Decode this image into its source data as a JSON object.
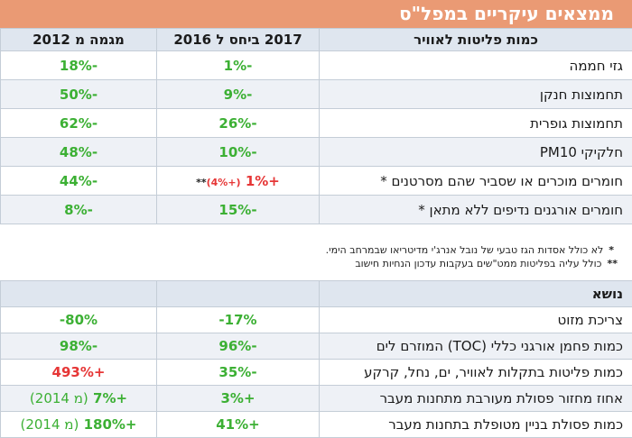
{
  "title": "ממצאים עיקריים במפל\"ס",
  "table1": {
    "headers": {
      "category": "כמות פליטות לאוויר",
      "vs2016": "2017 ביחס ל 2016",
      "trend2012": "מגמה מ 2012"
    },
    "rows": [
      {
        "label": "גזי חממה",
        "vs2016": "-1%",
        "trend2012": "-18%"
      },
      {
        "label": "תחמוצות חנקן",
        "vs2016": "-9%",
        "trend2012": "-50%"
      },
      {
        "label": "תחמוצות גופרית",
        "vs2016": "-26%",
        "trend2012": "-62%"
      },
      {
        "label": "חלקיקי PM10",
        "vs2016": "-10%",
        "trend2012": "-48%"
      },
      {
        "label": "חומרים מוכרים או שסביר שהם מסרטנים *",
        "vs2016": "+1%",
        "vs2016_note": "(+4%)",
        "vs2016_stars": "**",
        "trend2012": "-44%"
      },
      {
        "label": "חומרים אורגנים נדיפים ללא מתאן *",
        "vs2016": "-15%",
        "trend2012": "-8%"
      }
    ]
  },
  "notes": {
    "n1_star": "*",
    "n1": "לא כולל אסדות הגז טבעי של נובל אנרג'י מדיטריאו שבמרחב הימי.",
    "n2_star": "**",
    "n2": "כולל עליה בפליטות ממט\"שים בעקבות עדכון הנחיות חישוב"
  },
  "table2": {
    "headers": {
      "category": "נושא",
      "vs2016": "",
      "trend2012": ""
    },
    "rows": [
      {
        "label": "צריכת מזוט",
        "vs2016": "17%-",
        "trend2012": "80%-"
      },
      {
        "label": "כמות פחמן אורגני כללי (TOC) המוזרם לים",
        "vs2016": "-96%",
        "trend2012": "-98%"
      },
      {
        "label": "כמות פליטות בתקלות לאוויר, ים, נחל, קרקע",
        "vs2016": "-35%",
        "trend2012": "+493%"
      },
      {
        "label": "אחוז מחזור פסולת מעורבת מתחנות מעבר",
        "vs2016": "+3%",
        "trend2012": "+7%",
        "trend2012_paren": "(מ 2014)"
      },
      {
        "label": "כמות פסולת בניין מטופלת בתחנות מעבר",
        "vs2016": "+41%",
        "trend2012": "+180%",
        "trend2012_paren": "(מ 2014)"
      }
    ]
  },
  "colors": {
    "title_bg": "#ea9a74",
    "header_bg": "#dfe6ef",
    "decrease": "#3cb034",
    "increase": "#e63636"
  }
}
